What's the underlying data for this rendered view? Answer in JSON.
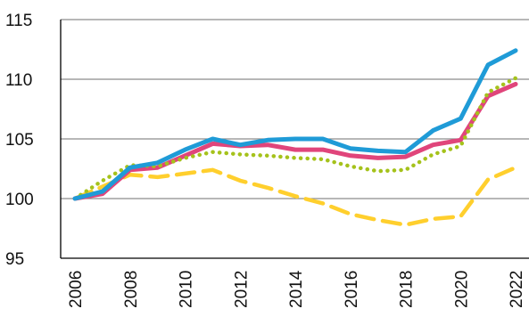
{
  "chart_data": {
    "type": "line",
    "title": "",
    "xlabel": "",
    "ylabel": "",
    "x": [
      2006,
      2007,
      2008,
      2009,
      2010,
      2011,
      2012,
      2013,
      2014,
      2015,
      2016,
      2017,
      2018,
      2019,
      2020,
      2021,
      2022
    ],
    "x_tick_labels": [
      "2006",
      "2008",
      "2010",
      "2012",
      "2014",
      "2016",
      "2018",
      "2020",
      "2022"
    ],
    "y_tick_labels": [
      "95",
      "100",
      "105",
      "110",
      "115"
    ],
    "ylim": [
      95,
      115
    ],
    "grid": "horizontal",
    "legend": "none",
    "series": [
      {
        "color": "#1f9bd7",
        "style": "solid",
        "values": [
          100.0,
          100.6,
          102.6,
          103.0,
          104.1,
          105.0,
          104.5,
          104.9,
          105.0,
          105.0,
          104.2,
          104.0,
          103.9,
          105.7,
          106.7,
          111.2,
          112.4
        ]
      },
      {
        "color": "#e0457b",
        "style": "solid",
        "values": [
          100.0,
          100.4,
          102.4,
          102.6,
          103.6,
          104.6,
          104.4,
          104.5,
          104.1,
          104.1,
          103.6,
          103.4,
          103.5,
          104.5,
          104.9,
          108.6,
          109.6
        ]
      },
      {
        "color": "#a5c21b",
        "style": "dotted",
        "values": [
          100.0,
          101.5,
          102.8,
          102.7,
          103.4,
          103.9,
          103.7,
          103.6,
          103.4,
          103.3,
          102.7,
          102.3,
          102.4,
          103.7,
          104.4,
          108.9,
          110.1
        ]
      },
      {
        "color": "#ffcf2d",
        "style": "dashed",
        "values": [
          100.0,
          101.0,
          102.0,
          101.8,
          102.1,
          102.4,
          101.5,
          100.9,
          100.2,
          99.6,
          98.7,
          98.2,
          97.8,
          98.3,
          98.5,
          101.6,
          102.6
        ]
      }
    ]
  }
}
